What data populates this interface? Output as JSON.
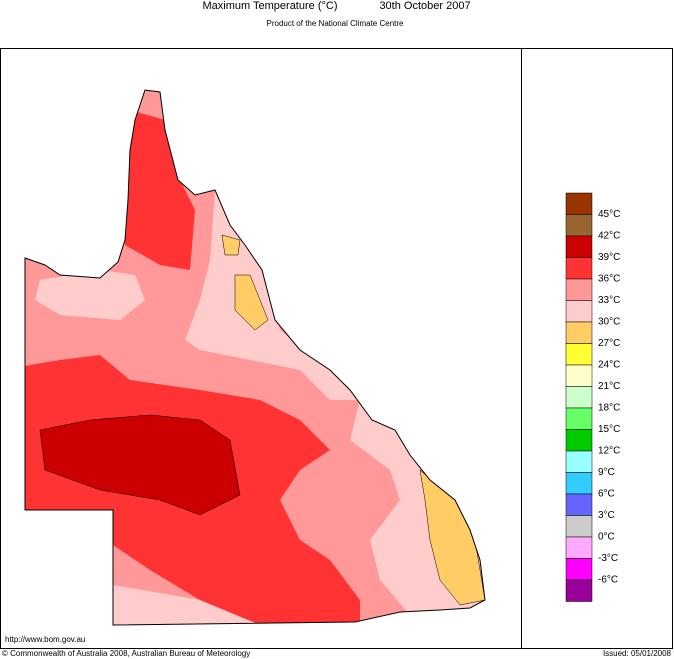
{
  "header": {
    "title": "Maximum Temperature (°C)",
    "date": "30th October 2007",
    "subtitle": "Product of the National Climate Centre"
  },
  "legend": {
    "colors": [
      "#993300",
      "#996633",
      "#cc0000",
      "#ff3333",
      "#ff9999",
      "#ffcccc",
      "#ffcc66",
      "#ffff33",
      "#ffffcc",
      "#ccffcc",
      "#66ff66",
      "#00cc00",
      "#99ffff",
      "#33ccff",
      "#6666ff",
      "#cccccc",
      "#ffaaff",
      "#ff00ff",
      "#990099"
    ],
    "labels": [
      "45°C",
      "42°C",
      "39°C",
      "36°C",
      "33°C",
      "30°C",
      "27°C",
      "24°C",
      "21°C",
      "18°C",
      "15°C",
      "12°C",
      "9°C",
      "6°C",
      "3°C",
      "0°C",
      "-3°C",
      "-6°C"
    ]
  },
  "footer": {
    "url": "http://www.bom.gov.au",
    "copyright": "© Commonwealth of Australia 2008, Australian Bureau of Meteorology",
    "issued": "Issued: 05/01/2008"
  }
}
